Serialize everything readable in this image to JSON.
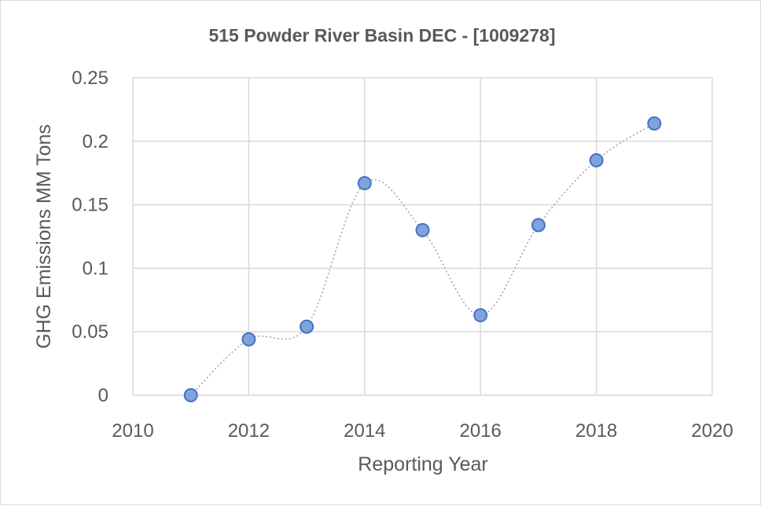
{
  "chart_data": {
    "type": "scatter",
    "title": "515 Powder River Basin DEC - [1009278]",
    "xlabel": "Reporting Year",
    "ylabel": "GHG Emissions MM Tons",
    "xlim": [
      2010,
      2020
    ],
    "ylim": [
      0,
      0.25
    ],
    "x_ticks": [
      "2010",
      "2012",
      "2014",
      "2016",
      "2018",
      "2020"
    ],
    "y_ticks": [
      "0",
      "0.05",
      "0.1",
      "0.15",
      "0.2",
      "0.25"
    ],
    "x_tick_values": [
      2010,
      2012,
      2014,
      2016,
      2018,
      2020
    ],
    "y_tick_values": [
      0,
      0.05,
      0.1,
      0.15,
      0.2,
      0.25
    ],
    "grid": true,
    "smoothed_dotted_line": true,
    "marker_fill": "#7fa3dc",
    "marker_stroke": "#4472c4",
    "series": [
      {
        "x": [
          2011,
          2012,
          2013,
          2014,
          2015,
          2016,
          2017,
          2018,
          2019
        ],
        "y": [
          0.0,
          0.044,
          0.054,
          0.167,
          0.13,
          0.063,
          0.134,
          0.185,
          0.214
        ]
      }
    ]
  }
}
